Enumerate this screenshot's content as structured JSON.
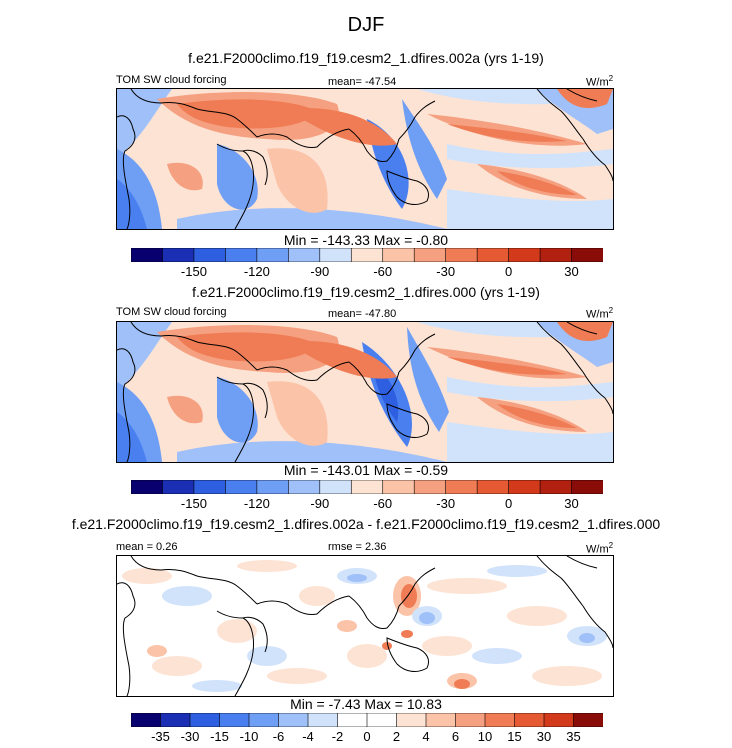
{
  "figure_title": "DJF",
  "panels": [
    {
      "subtitle": "f.e21.F2000climo.f19_f19.cesm2_1.dfires.002a (yrs 1-19)",
      "left_label": "TOM SW cloud forcing",
      "center_label": "mean= -47.54",
      "units_label": "W/m",
      "units_exp": "2",
      "stats": "Min = -143.33 Max =  -0.80"
    },
    {
      "subtitle": "f.e21.F2000climo.f19_f19.cesm2_1.dfires.000 (yrs 1-19)",
      "left_label": "TOM SW cloud forcing",
      "center_label": "mean= -47.80",
      "units_label": "W/m",
      "units_exp": "2",
      "stats": "Min = -143.01 Max =  -0.59"
    },
    {
      "subtitle": "f.e21.F2000climo.f19_f19.cesm2_1.dfires.002a - f.e21.F2000climo.f19_f19.cesm2_1.dfires.000",
      "left_label": "mean =   0.26",
      "center_label": "rmse =   2.36",
      "units_label": "W/m",
      "units_exp": "2",
      "stats": "Min =  -7.43 Max =  10.83"
    }
  ],
  "chart_data": [
    {
      "type": "heatmap",
      "title": "f.e21.F2000climo.f19_f19.cesm2_1.dfires.002a (yrs 1-19)",
      "variable": "TOM SW cloud forcing",
      "units": "W/m2",
      "mean": -47.54,
      "min": -143.33,
      "max": -0.8,
      "colorbar_ticks": [
        "-150",
        "-120",
        "-90",
        "-60",
        "-30",
        "0",
        "30"
      ],
      "colorbar_colors": [
        "#08006f",
        "#1a2fb3",
        "#2d5fe0",
        "#4a7ff0",
        "#6f9ff5",
        "#9fc0f8",
        "#d1e3fb",
        "#fde3d4",
        "#fbc3a8",
        "#f5a080",
        "#ef7c55",
        "#e65a33",
        "#d33a1c",
        "#b22010",
        "#8a0c08"
      ]
    },
    {
      "type": "heatmap",
      "title": "f.e21.F2000climo.f19_f19.cesm2_1.dfires.000 (yrs 1-19)",
      "variable": "TOM SW cloud forcing",
      "units": "W/m2",
      "mean": -47.8,
      "min": -143.01,
      "max": -0.59,
      "colorbar_ticks": [
        "-150",
        "-120",
        "-90",
        "-60",
        "-30",
        "0",
        "30"
      ],
      "colorbar_colors": [
        "#08006f",
        "#1a2fb3",
        "#2d5fe0",
        "#4a7ff0",
        "#6f9ff5",
        "#9fc0f8",
        "#d1e3fb",
        "#fde3d4",
        "#fbc3a8",
        "#f5a080",
        "#ef7c55",
        "#e65a33",
        "#d33a1c",
        "#b22010",
        "#8a0c08"
      ]
    },
    {
      "type": "heatmap",
      "title": "f.e21.F2000climo.f19_f19.cesm2_1.dfires.002a - f.e21.F2000climo.f19_f19.cesm2_1.dfires.000",
      "units": "W/m2",
      "mean": 0.26,
      "rmse": 2.36,
      "min": -7.43,
      "max": 10.83,
      "colorbar_ticks": [
        "-35",
        "-30",
        "-15",
        "-10",
        "-6",
        "-4",
        "-2",
        "0",
        "2",
        "4",
        "6",
        "10",
        "15",
        "30",
        "35"
      ],
      "colorbar_colors": [
        "#08006f",
        "#1a2fb3",
        "#2d5fe0",
        "#4a7ff0",
        "#6f9ff5",
        "#9fc0f8",
        "#d1e3fb",
        "#ffffff",
        "#ffffff",
        "#fde3d4",
        "#fbc3a8",
        "#f5a080",
        "#ef7c55",
        "#e65a33",
        "#d33a1c",
        "#8a0c08"
      ]
    }
  ]
}
